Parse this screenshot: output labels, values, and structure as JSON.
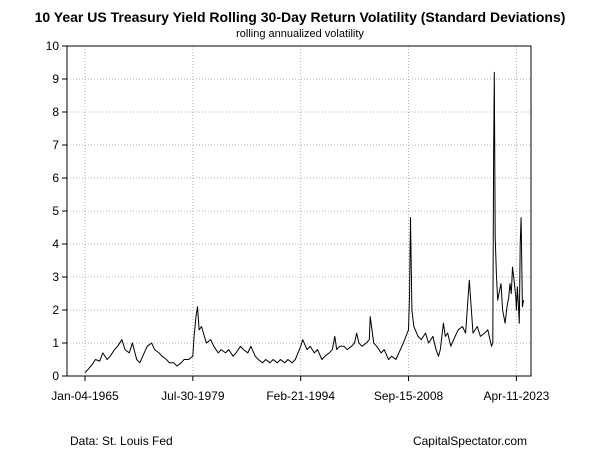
{
  "chart_data": {
    "type": "line",
    "title": "10 Year US Treasury Yield Rolling 30-Day Return Volatility (Standard Deviations)",
    "subtitle": "rolling annualized volatility",
    "xlabel": "",
    "ylabel": "",
    "x_tick_labels": [
      "Jan-04-1965",
      "Jul-30-1979",
      "Feb-21-1994",
      "Sep-15-2008",
      "Apr-11-2023"
    ],
    "x_tick_dates": [
      "1965-01-04",
      "1979-07-30",
      "1994-02-21",
      "2008-09-15",
      "2023-04-11"
    ],
    "xlim": [
      "1962-08-01",
      "2025-04-01"
    ],
    "ylim": [
      0,
      10
    ],
    "y_ticks": [
      0,
      1,
      2,
      3,
      4,
      5,
      6,
      7,
      8,
      9,
      10
    ],
    "grid": true,
    "grid_style": "dotted",
    "line_color": "#000000",
    "series": [
      {
        "x": [
          "1965-01-04",
          "1965-06-01",
          "1966-01-01",
          "1966-06-01",
          "1967-01-01",
          "1967-06-01",
          "1968-01-01",
          "1968-06-01",
          "1969-01-01",
          "1969-06-01",
          "1970-01-01",
          "1970-06-01",
          "1971-01-01",
          "1971-06-01",
          "1972-01-01",
          "1972-06-01",
          "1973-01-01",
          "1973-06-01",
          "1974-01-01",
          "1974-06-01",
          "1975-01-01",
          "1975-06-01",
          "1976-01-01",
          "1976-06-01",
          "1977-01-01",
          "1977-06-01",
          "1978-01-01",
          "1978-06-01",
          "1979-01-01",
          "1979-07-30",
          "1979-10-01",
          "1980-01-01",
          "1980-03-15",
          "1980-06-01",
          "1980-10-01",
          "1981-01-01",
          "1981-06-01",
          "1982-01-01",
          "1982-06-01",
          "1983-01-01",
          "1983-06-01",
          "1984-01-01",
          "1984-06-01",
          "1985-01-01",
          "1985-06-01",
          "1986-01-01",
          "1986-06-01",
          "1987-01-01",
          "1987-06-01",
          "1988-01-01",
          "1988-06-01",
          "1989-01-01",
          "1989-06-01",
          "1990-01-01",
          "1990-06-01",
          "1991-01-01",
          "1991-06-01",
          "1992-01-01",
          "1992-06-01",
          "1993-01-01",
          "1993-06-01",
          "1994-02-21",
          "1994-06-01",
          "1995-01-01",
          "1995-06-01",
          "1996-01-01",
          "1996-06-01",
          "1997-01-01",
          "1997-06-01",
          "1998-01-01",
          "1998-06-01",
          "1998-10-01",
          "1999-01-01",
          "1999-06-01",
          "2000-01-01",
          "2000-06-01",
          "2001-01-01",
          "2001-06-01",
          "2001-09-15",
          "2002-01-01",
          "2002-06-01",
          "2003-01-01",
          "2003-06-01",
          "2003-07-15",
          "2004-01-01",
          "2004-06-01",
          "2005-01-01",
          "2005-06-01",
          "2006-01-01",
          "2006-06-01",
          "2007-01-01",
          "2007-06-01",
          "2008-01-01",
          "2008-09-15",
          "2008-11-01",
          "2008-12-20",
          "2009-03-01",
          "2009-06-01",
          "2010-01-01",
          "2010-06-01",
          "2011-01-01",
          "2011-06-01",
          "2012-01-01",
          "2012-06-01",
          "2012-10-01",
          "2013-01-01",
          "2013-06-01",
          "2013-09-01",
          "2014-01-01",
          "2014-06-01",
          "2015-01-01",
          "2015-06-01",
          "2016-01-01",
          "2016-06-01",
          "2016-12-01",
          "2017-06-01",
          "2018-01-01",
          "2018-06-01",
          "2019-01-01",
          "2019-06-01",
          "2019-12-01",
          "2020-02-01",
          "2020-03-15",
          "2020-04-15",
          "2020-06-01",
          "2020-08-01",
          "2020-10-01",
          "2021-01-01",
          "2021-03-15",
          "2021-06-01",
          "2021-10-01",
          "2022-01-01",
          "2022-04-01",
          "2022-06-01",
          "2022-08-01",
          "2022-10-01",
          "2023-01-01",
          "2023-03-15",
          "2023-04-11",
          "2023-06-01",
          "2023-09-01",
          "2023-10-15",
          "2023-12-01",
          "2024-02-01",
          "2024-04-01"
        ],
        "values": [
          0.1,
          0.2,
          0.35,
          0.5,
          0.45,
          0.7,
          0.5,
          0.6,
          0.8,
          0.9,
          1.1,
          0.8,
          0.7,
          1.0,
          0.5,
          0.4,
          0.7,
          0.9,
          1.0,
          0.8,
          0.7,
          0.6,
          0.5,
          0.4,
          0.4,
          0.3,
          0.4,
          0.5,
          0.5,
          0.6,
          1.2,
          1.8,
          2.1,
          1.4,
          1.5,
          1.3,
          1.0,
          1.1,
          0.9,
          0.7,
          0.8,
          0.7,
          0.8,
          0.6,
          0.7,
          0.9,
          0.8,
          0.7,
          0.9,
          0.6,
          0.5,
          0.4,
          0.5,
          0.4,
          0.5,
          0.4,
          0.5,
          0.4,
          0.5,
          0.4,
          0.5,
          0.9,
          1.1,
          0.8,
          0.9,
          0.7,
          0.8,
          0.5,
          0.6,
          0.7,
          0.8,
          1.2,
          0.8,
          0.9,
          0.9,
          0.8,
          0.9,
          1.0,
          1.3,
          1.0,
          0.9,
          1.0,
          1.1,
          1.8,
          1.0,
          0.9,
          0.7,
          0.8,
          0.5,
          0.6,
          0.5,
          0.7,
          1.0,
          1.4,
          2.4,
          4.8,
          2.0,
          1.5,
          1.2,
          1.1,
          1.3,
          1.0,
          1.2,
          0.8,
          0.6,
          0.8,
          1.6,
          1.2,
          1.3,
          0.9,
          1.2,
          1.4,
          1.5,
          1.3,
          2.9,
          1.3,
          1.5,
          1.2,
          1.3,
          1.4,
          0.9,
          1.0,
          6.6,
          9.2,
          4.2,
          3.0,
          2.3,
          2.6,
          2.8,
          2.0,
          1.6,
          2.1,
          2.4,
          2.8,
          2.5,
          3.3,
          2.8,
          2.4,
          2.0,
          2.7,
          1.6,
          4.0,
          4.8,
          2.1,
          2.3
        ]
      }
    ],
    "footer_left": "Data: St. Louis Fed",
    "footer_right": "CapitalSpectator.com"
  }
}
